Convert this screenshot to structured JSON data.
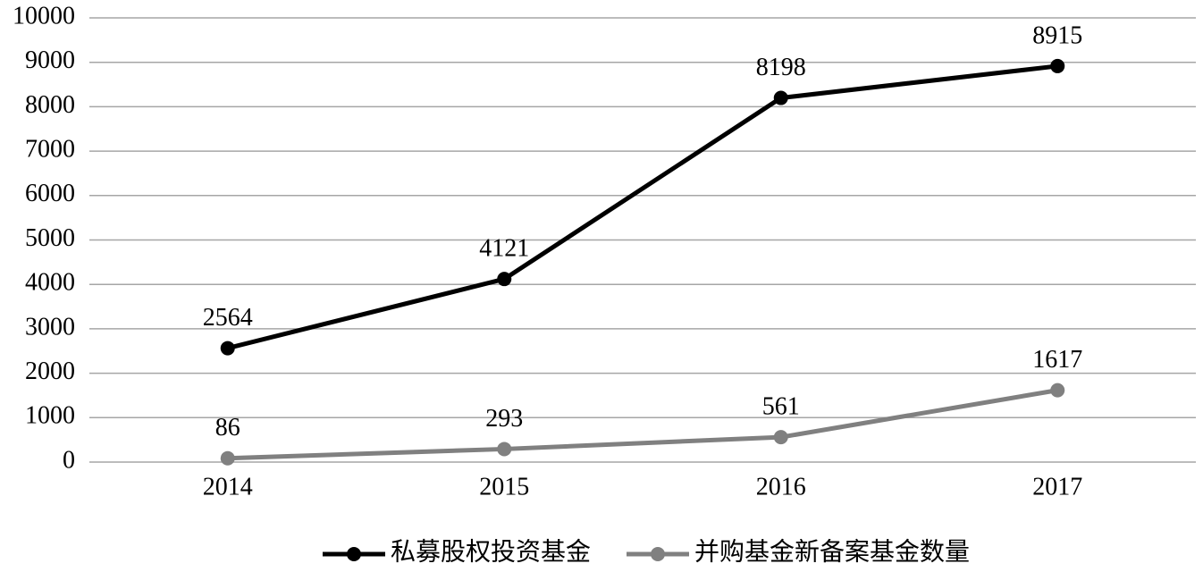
{
  "chart_data": {
    "type": "line",
    "categories": [
      "2014",
      "2015",
      "2016",
      "2017"
    ],
    "series": [
      {
        "name": "私募股权投资基金",
        "color": "#000000",
        "values": [
          2564,
          4121,
          8198,
          8915
        ]
      },
      {
        "name": "并购基金新备案基金数量",
        "color": "#808080",
        "values": [
          86,
          293,
          561,
          1617
        ]
      }
    ],
    "ylim": [
      0,
      10000
    ],
    "yticks": [
      0,
      1000,
      2000,
      3000,
      4000,
      5000,
      6000,
      7000,
      8000,
      9000,
      10000
    ],
    "grid": true,
    "legend": "bottom"
  }
}
